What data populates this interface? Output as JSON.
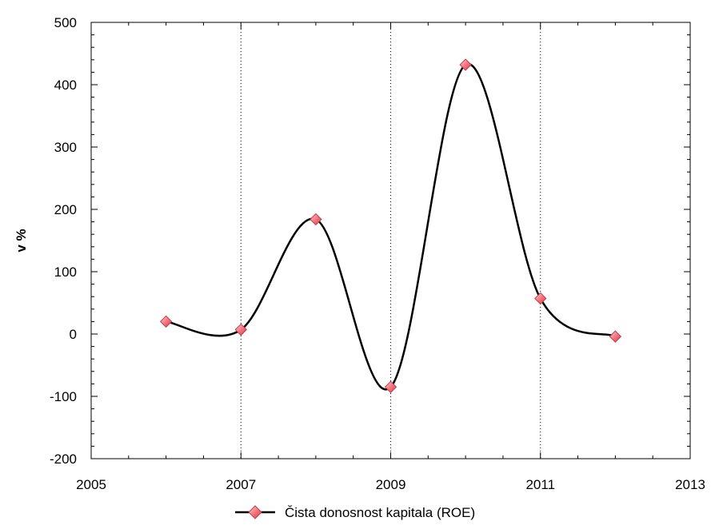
{
  "chart_data": {
    "type": "line",
    "title": "",
    "xlabel": "",
    "ylabel": "v %",
    "xlim": [
      2005,
      2013
    ],
    "ylim": [
      -200,
      500
    ],
    "x_ticks": [
      "2005",
      "2007",
      "2009",
      "2011",
      "2013"
    ],
    "y_ticks": [
      "500",
      "400",
      "300",
      "200",
      "100",
      "0",
      "-100",
      "-200"
    ],
    "x_gridlines": [
      2007,
      2009,
      2011
    ],
    "grid": "vertical dotted at major x ticks",
    "legend_position": "bottom-center",
    "series": [
      {
        "name": "Čista donosnost kapitala (ROE)",
        "x": [
          2006,
          2007,
          2008,
          2009,
          2010,
          2011,
          2012
        ],
        "y": [
          20,
          7,
          184,
          -85,
          432,
          57,
          -4
        ],
        "line_color": "#000000",
        "marker": "diamond",
        "marker_color": "#f0707a",
        "marker_edge_color": "#c43c48",
        "smooth": true
      }
    ]
  }
}
